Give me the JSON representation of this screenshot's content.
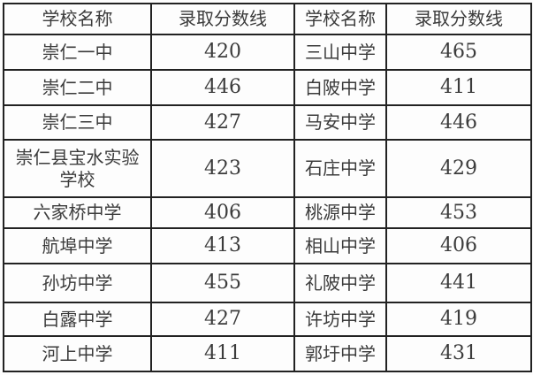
{
  "table": {
    "headers": [
      "学校名称",
      "录取分数线",
      "学校名称",
      "录取分数线"
    ],
    "rows": [
      [
        "崇仁一中",
        "420",
        "三山中学",
        "465"
      ],
      [
        "崇仁二中",
        "446",
        "白陂中学",
        "411"
      ],
      [
        "崇仁三中",
        "427",
        "马安中学",
        "446"
      ],
      [
        "崇仁县宝水实验\n学校",
        "423",
        "石庄中学",
        "429"
      ],
      [
        "六家桥中学",
        "406",
        "桃源中学",
        "453"
      ],
      [
        "航埠中学",
        "413",
        "相山中学",
        "406"
      ],
      [
        "孙坊中学",
        "455",
        "礼陂中学",
        "441"
      ],
      [
        "白露中学",
        "427",
        "许坊中学",
        "419"
      ],
      [
        "河上中学",
        "411",
        "郭圩中学",
        "431"
      ]
    ],
    "colors": {
      "border": "#222222",
      "text": "#3b3b3b",
      "background": "#fdfdfd"
    }
  },
  "chart_data": {
    "type": "table",
    "title": "",
    "columns": [
      "学校名称",
      "录取分数线",
      "学校名称",
      "录取分数线"
    ],
    "rows": [
      {
        "school": "崇仁一中",
        "score": 420
      },
      {
        "school": "崇仁二中",
        "score": 446
      },
      {
        "school": "崇仁三中",
        "score": 427
      },
      {
        "school": "崇仁县宝水实验学校",
        "score": 423
      },
      {
        "school": "六家桥中学",
        "score": 406
      },
      {
        "school": "航埠中学",
        "score": 413
      },
      {
        "school": "孙坊中学",
        "score": 455
      },
      {
        "school": "白露中学",
        "score": 427
      },
      {
        "school": "河上中学",
        "score": 411
      },
      {
        "school": "三山中学",
        "score": 465
      },
      {
        "school": "白陂中学",
        "score": 411
      },
      {
        "school": "马安中学",
        "score": 446
      },
      {
        "school": "石庄中学",
        "score": 429
      },
      {
        "school": "桃源中学",
        "score": 453
      },
      {
        "school": "相山中学",
        "score": 406
      },
      {
        "school": "礼陂中学",
        "score": 441
      },
      {
        "school": "许坊中学",
        "score": 419
      },
      {
        "school": "郭圩中学",
        "score": 431
      }
    ]
  }
}
